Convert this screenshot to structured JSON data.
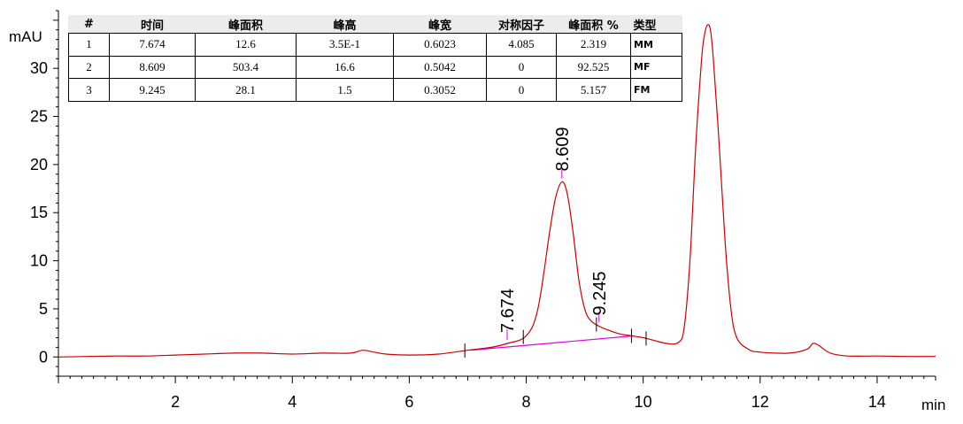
{
  "table": {
    "headers": [
      "#",
      "时间",
      "峰面积",
      "峰高",
      "峰宽",
      "对称因子",
      "峰面积 %",
      "类型"
    ],
    "rows": [
      [
        "1",
        "7.674",
        "12.6",
        "3.5E-1",
        "0.6023",
        "4.085",
        "2.319",
        "MM"
      ],
      [
        "2",
        "8.609",
        "503.4",
        "16.6",
        "0.5042",
        "0",
        "92.525",
        "MF"
      ],
      [
        "3",
        "9.245",
        "28.1",
        "1.5",
        "0.3052",
        "0",
        "5.157",
        "FM"
      ]
    ]
  },
  "chart_data": {
    "type": "line",
    "xlabel": "min",
    "ylabel": "mAU",
    "xlim": [
      0,
      15
    ],
    "ylim": [
      -2,
      36
    ],
    "x_ticks": [
      2,
      4,
      6,
      8,
      10,
      12,
      14
    ],
    "y_ticks": [
      0,
      5,
      10,
      15,
      20,
      25,
      30
    ],
    "grid": false,
    "colors": {
      "trace": "#cc0000",
      "baseline": "#e000e0",
      "marker": "#000000"
    },
    "series": [
      {
        "x": [
          0.0,
          0.5,
          1.0,
          1.5,
          2.0,
          2.5,
          3.0,
          3.5,
          4.0,
          4.5,
          5.0,
          5.2,
          5.4,
          5.6,
          6.0,
          6.5,
          7.0,
          7.4,
          7.674,
          8.0,
          8.2,
          8.4,
          8.5,
          8.609,
          8.7,
          8.8,
          8.9,
          9.0,
          9.1,
          9.245,
          9.4,
          9.6,
          9.8,
          10.0,
          10.2,
          10.4,
          10.6,
          10.7,
          10.8,
          10.9,
          11.0,
          11.05,
          11.1,
          11.15,
          11.2,
          11.3,
          11.4,
          11.5,
          11.6,
          11.8,
          12.0,
          12.5,
          12.8,
          12.9,
          13.0,
          13.2,
          13.5,
          14.0,
          14.5,
          15.0
        ],
        "y": [
          0.0,
          0.05,
          0.1,
          0.1,
          0.2,
          0.3,
          0.4,
          0.4,
          0.3,
          0.4,
          0.4,
          0.7,
          0.5,
          0.3,
          0.2,
          0.3,
          0.7,
          1.0,
          1.4,
          2.2,
          5.0,
          13.0,
          16.5,
          18.2,
          17.0,
          13.0,
          8.0,
          5.0,
          3.8,
          3.2,
          2.8,
          2.4,
          2.2,
          2.0,
          1.7,
          1.4,
          1.5,
          3.0,
          10.0,
          22.0,
          31.0,
          33.5,
          34.5,
          34.0,
          31.0,
          22.0,
          12.0,
          5.0,
          2.0,
          0.8,
          0.5,
          0.4,
          0.8,
          1.4,
          1.2,
          0.4,
          0.1,
          0.1,
          0.05,
          0.05
        ]
      }
    ],
    "baseline": {
      "x": [
        7.05,
        9.85
      ],
      "y": [
        0.7,
        2.2
      ]
    },
    "peaks": [
      {
        "label": "7.674",
        "x": 7.674,
        "y": 1.4
      },
      {
        "label": "8.609",
        "x": 8.609,
        "y": 18.2
      },
      {
        "label": "9.245",
        "x": 9.245,
        "y": 3.2
      }
    ],
    "event_marks": [
      6.95,
      7.95,
      9.2,
      9.8,
      10.05
    ]
  }
}
